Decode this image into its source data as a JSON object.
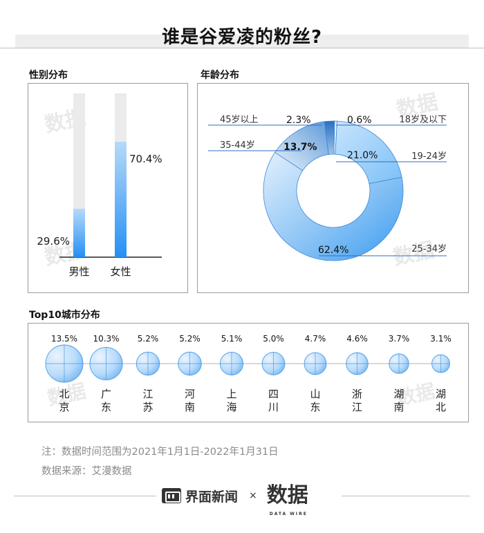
{
  "title": "谁是谷爱凌的粉丝?",
  "watermark": {
    "cn": "数据",
    "en": "DATA WIRE"
  },
  "sections": {
    "gender": "性别分布",
    "age": "年龄分布",
    "city": "Top10城市分布"
  },
  "chart_data": [
    {
      "type": "bar",
      "title": "性别分布",
      "categories": [
        "男性",
        "女性"
      ],
      "values": [
        29.6,
        70.4
      ],
      "value_labels": [
        "29.6%",
        "70.4%"
      ],
      "ylim": [
        0,
        100
      ],
      "colors": {
        "bar_top": "#b7d9f8",
        "bar_bottom": "#2490f5",
        "track": "#ebebeb"
      }
    },
    {
      "type": "pie",
      "title": "年龄分布",
      "donut": true,
      "categories": [
        "18岁及以下",
        "19-24岁",
        "25-34岁",
        "35-44岁",
        "45岁以上"
      ],
      "values": [
        0.6,
        21.0,
        62.4,
        13.7,
        2.3
      ],
      "value_labels": [
        "0.6%",
        "21.0%",
        "62.4%",
        "13.7%",
        "2.3%"
      ],
      "colors": [
        "#e6f1fc",
        "#9fd0fb",
        "#4aa6f0",
        "#c6dcf0",
        "#2b6fc0"
      ]
    },
    {
      "type": "scatter",
      "title": "Top10城市分布",
      "categories": [
        "北京",
        "广东",
        "江苏",
        "河南",
        "上海",
        "四川",
        "山东",
        "浙江",
        "湖南",
        "湖北"
      ],
      "values": [
        13.5,
        10.3,
        5.2,
        5.2,
        5.1,
        5.0,
        4.7,
        4.6,
        3.7,
        3.1
      ],
      "value_labels": [
        "13.5%",
        "10.3%",
        "5.2%",
        "5.2%",
        "5.1%",
        "5.0%",
        "4.7%",
        "4.6%",
        "3.7%",
        "3.1%"
      ],
      "encoding": "bubble size proportional to value",
      "colors": {
        "bubble_light": "#eaf4fe",
        "bubble_dark": "#6fb4f2",
        "axis": "#b0b0b0"
      }
    }
  ],
  "notes": {
    "date_range": "注：数据时间范围为2021年1月1日-2022年1月31日",
    "source": "数据来源：艾漫数据"
  },
  "footer": {
    "brand": "界面新闻",
    "separator": "×",
    "partner": "数据",
    "partner_sub": "DATA WIRE"
  }
}
